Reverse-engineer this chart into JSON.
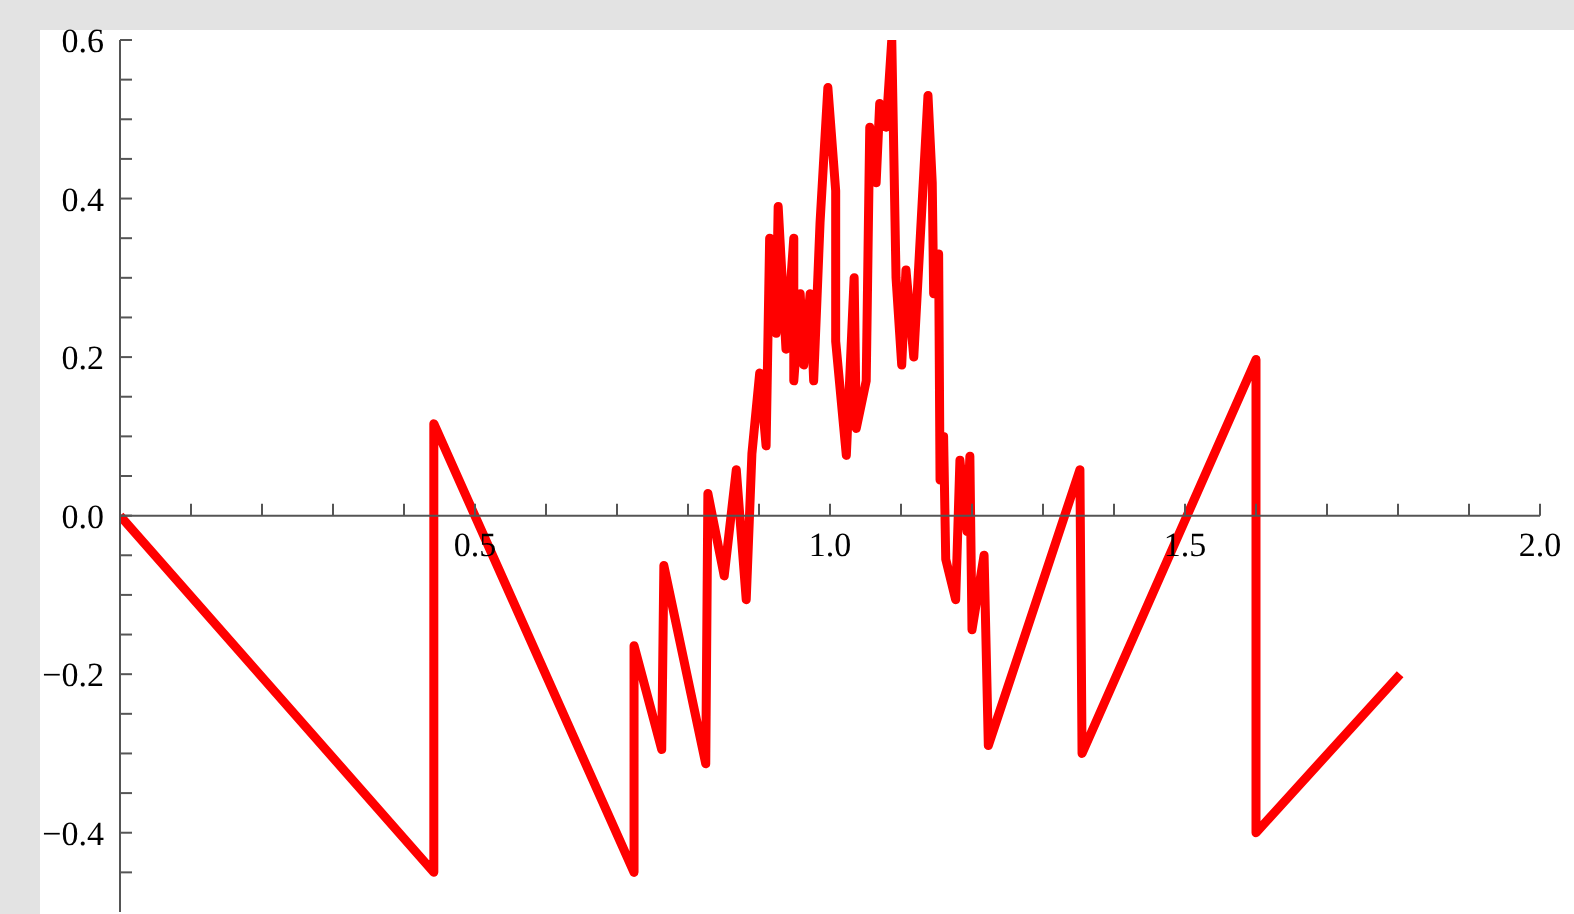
{
  "chart_data": {
    "type": "line",
    "marker": "none",
    "xlim": [
      0,
      2.0
    ],
    "ylim": [
      -0.5,
      0.6
    ],
    "xticks": [
      {
        "value": 0.1,
        "label": null
      },
      {
        "value": 0.2,
        "label": null
      },
      {
        "value": 0.3,
        "label": null
      },
      {
        "value": 0.4,
        "label": null
      },
      0.5,
      {
        "value": 0.6,
        "label": null
      },
      {
        "value": 0.7,
        "label": null
      },
      {
        "value": 0.8,
        "label": null
      },
      {
        "value": 0.9,
        "label": null
      },
      {
        "value": 1.0,
        "label": "1.0"
      },
      {
        "value": 1.1,
        "label": null
      },
      {
        "value": 1.2,
        "label": null
      },
      {
        "value": 1.3,
        "label": null
      },
      {
        "value": 1.4,
        "label": null
      },
      1.5,
      {
        "value": 1.6,
        "label": null
      },
      {
        "value": 1.7,
        "label": null
      },
      {
        "value": 1.8,
        "label": null
      },
      {
        "value": 1.9,
        "label": null
      },
      {
        "value": 2.0,
        "label": "2.0"
      }
    ],
    "yticks": [
      {
        "value": -0.45,
        "label": null
      },
      {
        "value": -0.4,
        "label": "−0.4"
      },
      {
        "value": -0.35,
        "label": null
      },
      {
        "value": -0.3,
        "label": null
      },
      {
        "value": -0.25,
        "label": null
      },
      {
        "value": -0.2,
        "label": "−0.2"
      },
      {
        "value": -0.15,
        "label": null
      },
      {
        "value": -0.1,
        "label": null
      },
      {
        "value": -0.05,
        "label": null
      },
      {
        "value": 0,
        "label": "0.0"
      },
      {
        "value": 0.05,
        "label": null
      },
      {
        "value": 0.1,
        "label": null
      },
      {
        "value": 0.15,
        "label": null
      },
      0.2,
      {
        "value": 0.25,
        "label": null
      },
      {
        "value": 0.3,
        "label": null
      },
      {
        "value": 0.35,
        "label": null
      },
      0.4,
      {
        "value": 0.45,
        "label": null
      },
      {
        "value": 0.5,
        "label": null
      },
      {
        "value": 0.55,
        "label": null
      },
      0.6
    ],
    "series": [
      {
        "color": "#ff0000",
        "x": [
          0,
          0.442,
          0.442,
          0.724,
          0.724,
          0.763,
          0.766,
          0.825,
          0.828,
          0.851,
          0.868,
          0.882,
          0.89,
          0.901,
          0.91,
          0.915,
          0.924,
          0.927,
          0.938,
          0.949,
          0.949,
          0.958,
          0.963,
          0.972,
          0.977,
          0.986,
          0.997,
          1.008,
          1.008,
          1.023,
          1.034,
          1.037,
          1.051,
          1.056,
          1.065,
          1.07,
          1.079,
          1.087,
          1.093,
          1.101,
          1.107,
          1.118,
          1.138,
          1.144,
          1.146,
          1.153,
          1.155,
          1.16,
          1.163,
          1.177,
          1.183,
          1.193,
          1.197,
          1.2,
          1.217,
          1.223,
          1.352,
          1.355,
          1.6,
          1.6,
          1.803
        ],
        "values": [
          0,
          -0.45,
          0.116,
          -0.45,
          -0.164,
          -0.295,
          -0.063,
          -0.313,
          0.028,
          -0.076,
          0.058,
          -0.106,
          0.078,
          0.18,
          0.088,
          0.35,
          0.23,
          0.39,
          0.21,
          0.35,
          0.17,
          0.28,
          0.19,
          0.28,
          0.17,
          0.37,
          0.54,
          0.41,
          0.22,
          0.076,
          0.3,
          0.11,
          0.17,
          0.49,
          0.42,
          0.52,
          0.49,
          0.6,
          0.3,
          0.19,
          0.31,
          0.2,
          0.53,
          0.42,
          0.28,
          0.33,
          0.045,
          0.1,
          -0.055,
          -0.106,
          0.07,
          -0.02,
          0.075,
          -0.144,
          -0.05,
          -0.29,
          0.058,
          -0.3,
          0.197,
          -0.4,
          -0.2
        ]
      }
    ]
  }
}
